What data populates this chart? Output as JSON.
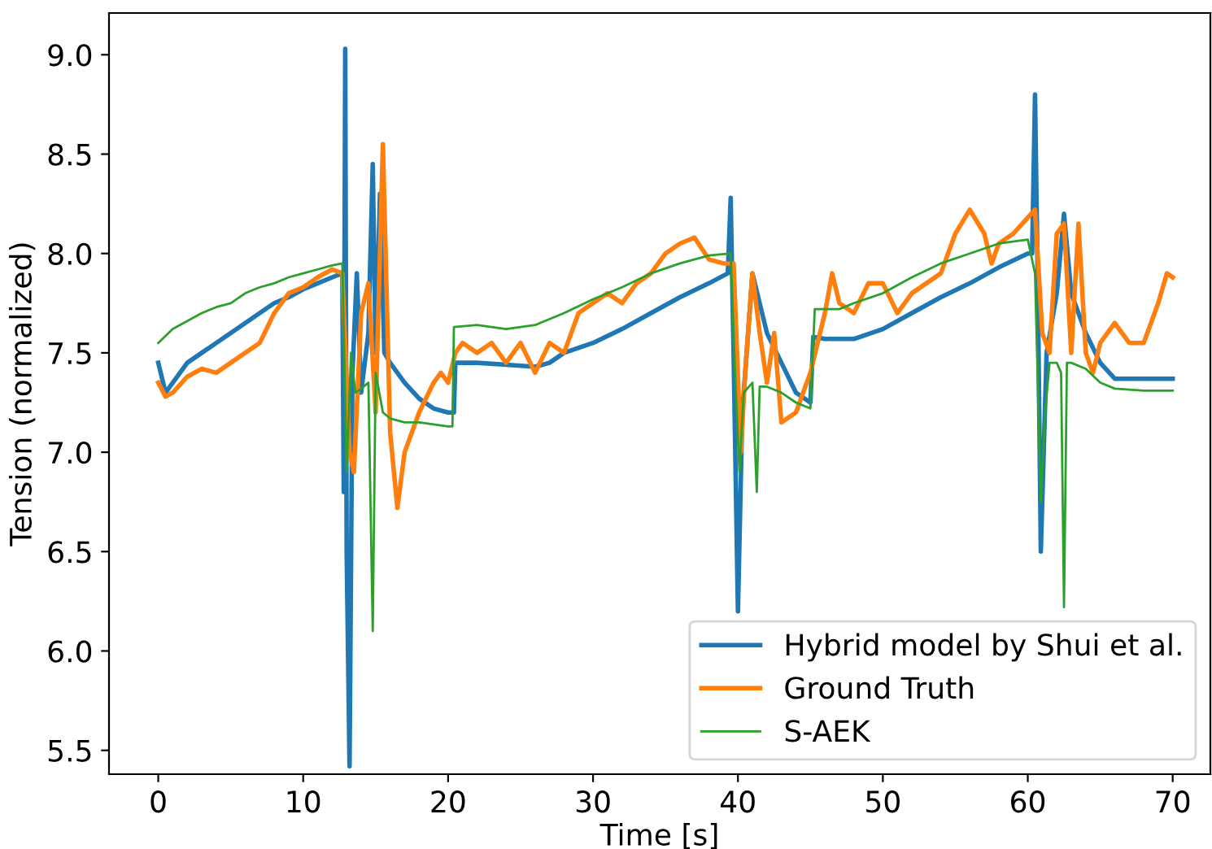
{
  "chart_data": {
    "type": "line",
    "xlabel": "Time [s]",
    "ylabel": "Tension (normalized)",
    "xlim": [
      -3.4,
      72.6
    ],
    "ylim": [
      5.38,
      9.21
    ],
    "xticks": [
      0,
      10,
      20,
      30,
      40,
      50,
      60,
      70
    ],
    "yticks": [
      {
        "value": 5.5,
        "label": "5.5"
      },
      {
        "value": 6.0,
        "label": "6.0"
      },
      {
        "value": 6.5,
        "label": "6.5"
      },
      {
        "value": 7.0,
        "label": "7.0"
      },
      {
        "value": 7.5,
        "label": "7.5"
      },
      {
        "value": 8.0,
        "label": "8.0"
      },
      {
        "value": 8.5,
        "label": "8.5"
      },
      {
        "value": 9.0,
        "label": "9.0"
      }
    ],
    "grid": false,
    "legend": "bottom right",
    "line_style": "solid",
    "marker": "none",
    "series": [
      {
        "name": "Hybrid model by Shui et al.",
        "color": "#1f77b4",
        "x": [
          0,
          0.5,
          1,
          2,
          3,
          4,
          5,
          6,
          7,
          8,
          9,
          10,
          11,
          12,
          12.7,
          12.8,
          12.9,
          13.0,
          13.2,
          13.4,
          13.7,
          14.0,
          14.5,
          14.8,
          15.0,
          15.3,
          15.6,
          16,
          17,
          18,
          19,
          20,
          20.4,
          20.5,
          22,
          24,
          26,
          27,
          28,
          30,
          32,
          34,
          36,
          38,
          39.3,
          39.5,
          39.7,
          40,
          40.3,
          40.6,
          41,
          41.5,
          42,
          43,
          44,
          45,
          45.2,
          46,
          48,
          50,
          52,
          54,
          56,
          58,
          60,
          60.3,
          60.5,
          60.7,
          60.9,
          61.3,
          62,
          62.5,
          63,
          64,
          65,
          66,
          68,
          70
        ],
        "values": [
          7.45,
          7.3,
          7.35,
          7.45,
          7.5,
          7.55,
          7.6,
          7.65,
          7.7,
          7.75,
          7.78,
          7.82,
          7.85,
          7.88,
          7.9,
          6.8,
          9.03,
          6.5,
          5.42,
          7.4,
          7.9,
          7.3,
          7.6,
          8.45,
          7.5,
          8.3,
          7.5,
          7.45,
          7.35,
          7.27,
          7.22,
          7.2,
          7.2,
          7.45,
          7.45,
          7.44,
          7.43,
          7.45,
          7.5,
          7.55,
          7.62,
          7.7,
          7.78,
          7.85,
          7.9,
          8.28,
          7.5,
          6.2,
          7.2,
          7.5,
          7.9,
          7.75,
          7.6,
          7.45,
          7.3,
          7.25,
          7.58,
          7.57,
          7.57,
          7.62,
          7.7,
          7.78,
          7.85,
          7.93,
          8.0,
          8.0,
          8.8,
          7.8,
          6.5,
          7.5,
          7.8,
          8.2,
          7.8,
          7.6,
          7.45,
          7.37,
          7.37,
          7.37
        ]
      },
      {
        "name": "Ground Truth",
        "color": "#ff7f0e",
        "x": [
          0,
          0.5,
          1,
          2,
          3,
          4,
          5,
          6,
          7,
          8,
          9,
          10,
          11,
          12,
          12.7,
          13.2,
          13.5,
          14,
          14.5,
          15,
          15.5,
          16,
          16.5,
          17,
          18,
          19,
          19.5,
          20,
          20.5,
          21,
          22,
          23,
          24,
          25,
          26,
          27,
          28,
          29,
          30,
          31,
          32,
          33,
          34,
          35,
          36,
          37,
          38,
          39,
          39.7,
          40.2,
          40.5,
          41,
          41.5,
          42,
          42.5,
          43,
          44,
          45,
          46,
          46.5,
          47,
          48,
          49,
          50,
          51,
          52,
          53,
          54,
          55,
          56,
          57,
          57.5,
          58,
          59,
          60,
          60.5,
          61,
          61.5,
          62,
          62.5,
          63,
          63.5,
          64,
          64.5,
          65,
          66,
          67,
          68,
          69,
          69.6,
          70
        ],
        "values": [
          7.35,
          7.28,
          7.3,
          7.38,
          7.42,
          7.4,
          7.45,
          7.5,
          7.55,
          7.7,
          7.8,
          7.83,
          7.88,
          7.92,
          7.9,
          7.0,
          6.9,
          7.7,
          7.85,
          7.2,
          8.55,
          7.1,
          6.72,
          7.0,
          7.2,
          7.35,
          7.4,
          7.35,
          7.5,
          7.55,
          7.5,
          7.55,
          7.45,
          7.55,
          7.4,
          7.55,
          7.5,
          7.7,
          7.75,
          7.8,
          7.75,
          7.85,
          7.9,
          8.0,
          8.05,
          8.08,
          7.97,
          7.95,
          7.95,
          7.0,
          7.4,
          7.9,
          7.6,
          7.35,
          7.6,
          7.15,
          7.2,
          7.4,
          7.7,
          7.9,
          7.75,
          7.7,
          7.85,
          7.85,
          7.7,
          7.8,
          7.85,
          7.9,
          8.1,
          8.22,
          8.1,
          7.95,
          8.05,
          8.1,
          8.18,
          8.22,
          7.6,
          7.5,
          8.1,
          8.15,
          7.5,
          8.15,
          7.5,
          7.4,
          7.55,
          7.65,
          7.55,
          7.55,
          7.75,
          7.9,
          7.88
        ]
      },
      {
        "name": "S-AEK",
        "color": "#2ca02c",
        "x": [
          0,
          1,
          2,
          3,
          4,
          5,
          6,
          7,
          8,
          9,
          10,
          11,
          12,
          12.7,
          13,
          13.3,
          13.6,
          14,
          14.5,
          14.8,
          15,
          15.5,
          16,
          17,
          18,
          19,
          20,
          20.3,
          20.4,
          22,
          24,
          26,
          28,
          30,
          32,
          34,
          36,
          38,
          39.5,
          39.8,
          40.1,
          40.4,
          41,
          41.3,
          41.5,
          42,
          43,
          44,
          45,
          45.3,
          47,
          48,
          50,
          52,
          54,
          56,
          58,
          60,
          60.5,
          60.9,
          61.2,
          61.5,
          62,
          62.3,
          62.5,
          62.7,
          63,
          64,
          65,
          66,
          68,
          70
        ],
        "values": [
          7.55,
          7.62,
          7.66,
          7.7,
          7.73,
          7.75,
          7.8,
          7.83,
          7.85,
          7.88,
          7.9,
          7.92,
          7.94,
          7.95,
          6.9,
          7.5,
          7.3,
          7.32,
          7.35,
          6.1,
          7.4,
          7.2,
          7.17,
          7.15,
          7.15,
          7.14,
          7.13,
          7.13,
          7.63,
          7.64,
          7.62,
          7.64,
          7.7,
          7.77,
          7.83,
          7.9,
          7.95,
          7.99,
          8.0,
          7.4,
          6.9,
          7.3,
          7.35,
          6.8,
          7.33,
          7.33,
          7.3,
          7.25,
          7.22,
          7.72,
          7.72,
          7.75,
          7.8,
          7.88,
          7.95,
          8.0,
          8.05,
          8.07,
          7.9,
          6.75,
          7.2,
          7.45,
          7.45,
          7.4,
          6.22,
          7.45,
          7.45,
          7.42,
          7.35,
          7.32,
          7.31,
          7.31
        ]
      }
    ]
  }
}
